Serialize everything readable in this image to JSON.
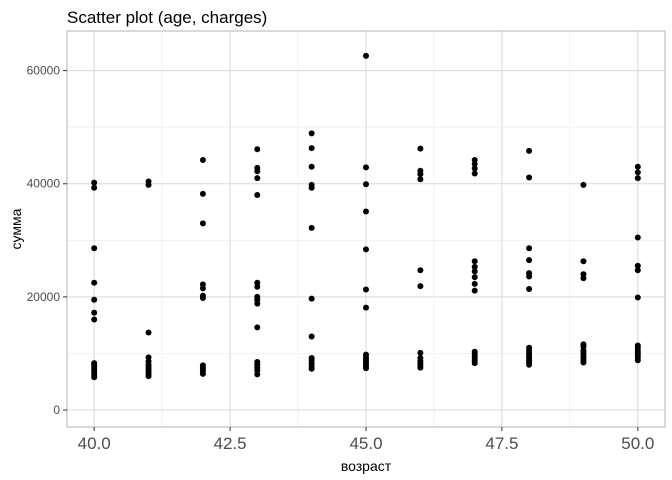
{
  "chart_data": {
    "type": "scatter",
    "title": "Scatter plot (age, charges)",
    "xlabel": "возраст",
    "ylabel": "сумма",
    "xlim": [
      39.5,
      50.5
    ],
    "ylim": [
      -3000,
      67000
    ],
    "x_ticks": [
      40.0,
      42.5,
      45.0,
      47.5,
      50.0
    ],
    "x_tick_labels": [
      "40.0",
      "42.5",
      "45.0",
      "47.5",
      "50.0"
    ],
    "y_ticks": [
      0,
      20000,
      40000,
      60000
    ],
    "y_tick_labels": [
      "0",
      "20000",
      "40000",
      "60000"
    ],
    "grid": true,
    "legend": "none",
    "point_color": "#000000",
    "points": [
      [
        40,
        5800
      ],
      [
        40,
        6200
      ],
      [
        40,
        6600
      ],
      [
        40,
        7000
      ],
      [
        40,
        7300
      ],
      [
        40,
        7600
      ],
      [
        40,
        8000
      ],
      [
        40,
        8300
      ],
      [
        40,
        16000
      ],
      [
        40,
        17200
      ],
      [
        40,
        19500
      ],
      [
        40,
        22500
      ],
      [
        40,
        28600
      ],
      [
        40,
        39300
      ],
      [
        40,
        40200
      ],
      [
        41,
        6000
      ],
      [
        41,
        6400
      ],
      [
        41,
        6800
      ],
      [
        41,
        7200
      ],
      [
        41,
        7600
      ],
      [
        41,
        8000
      ],
      [
        41,
        8600
      ],
      [
        41,
        9300
      ],
      [
        41,
        13700
      ],
      [
        41,
        39800
      ],
      [
        41,
        40400
      ],
      [
        42,
        6400
      ],
      [
        42,
        6800
      ],
      [
        42,
        7200
      ],
      [
        42,
        7500
      ],
      [
        42,
        7900
      ],
      [
        42,
        19800
      ],
      [
        42,
        20200
      ],
      [
        42,
        21500
      ],
      [
        42,
        22200
      ],
      [
        42,
        33000
      ],
      [
        42,
        38200
      ],
      [
        42,
        44200
      ],
      [
        43,
        6300
      ],
      [
        43,
        7000
      ],
      [
        43,
        7500
      ],
      [
        43,
        8000
      ],
      [
        43,
        8500
      ],
      [
        43,
        14600
      ],
      [
        43,
        18800
      ],
      [
        43,
        19500
      ],
      [
        43,
        20000
      ],
      [
        43,
        21800
      ],
      [
        43,
        22500
      ],
      [
        43,
        38000
      ],
      [
        43,
        41000
      ],
      [
        43,
        42200
      ],
      [
        43,
        42800
      ],
      [
        43,
        46100
      ],
      [
        44,
        7300
      ],
      [
        44,
        7700
      ],
      [
        44,
        8200
      ],
      [
        44,
        8800
      ],
      [
        44,
        9200
      ],
      [
        44,
        13000
      ],
      [
        44,
        19700
      ],
      [
        44,
        32200
      ],
      [
        44,
        39300
      ],
      [
        44,
        39800
      ],
      [
        44,
        43000
      ],
      [
        44,
        46300
      ],
      [
        44,
        48900
      ],
      [
        45,
        7400
      ],
      [
        45,
        7800
      ],
      [
        45,
        8100
      ],
      [
        45,
        8500
      ],
      [
        45,
        8900
      ],
      [
        45,
        9300
      ],
      [
        45,
        9800
      ],
      [
        45,
        18100
      ],
      [
        45,
        21300
      ],
      [
        45,
        28400
      ],
      [
        45,
        35100
      ],
      [
        45,
        39900
      ],
      [
        45,
        42900
      ],
      [
        45,
        62600
      ],
      [
        46,
        7500
      ],
      [
        46,
        7900
      ],
      [
        46,
        8300
      ],
      [
        46,
        8700
      ],
      [
        46,
        9200
      ],
      [
        46,
        10100
      ],
      [
        46,
        21900
      ],
      [
        46,
        24700
      ],
      [
        46,
        40800
      ],
      [
        46,
        41700
      ],
      [
        46,
        42300
      ],
      [
        46,
        46200
      ],
      [
        47,
        8300
      ],
      [
        47,
        8700
      ],
      [
        47,
        9100
      ],
      [
        47,
        9500
      ],
      [
        47,
        9900
      ],
      [
        47,
        10300
      ],
      [
        47,
        21100
      ],
      [
        47,
        22300
      ],
      [
        47,
        23500
      ],
      [
        47,
        24500
      ],
      [
        47,
        25300
      ],
      [
        47,
        26300
      ],
      [
        47,
        41800
      ],
      [
        47,
        42700
      ],
      [
        47,
        43500
      ],
      [
        47,
        44200
      ],
      [
        48,
        8000
      ],
      [
        48,
        8400
      ],
      [
        48,
        8800
      ],
      [
        48,
        9200
      ],
      [
        48,
        9600
      ],
      [
        48,
        10000
      ],
      [
        48,
        10500
      ],
      [
        48,
        11000
      ],
      [
        48,
        21400
      ],
      [
        48,
        23600
      ],
      [
        48,
        24200
      ],
      [
        48,
        26500
      ],
      [
        48,
        28600
      ],
      [
        48,
        41100
      ],
      [
        48,
        45800
      ],
      [
        49,
        8400
      ],
      [
        49,
        8800
      ],
      [
        49,
        9200
      ],
      [
        49,
        9600
      ],
      [
        49,
        10000
      ],
      [
        49,
        10500
      ],
      [
        49,
        11200
      ],
      [
        49,
        11600
      ],
      [
        49,
        23300
      ],
      [
        49,
        24000
      ],
      [
        49,
        26300
      ],
      [
        49,
        39800
      ],
      [
        50,
        8800
      ],
      [
        50,
        9300
      ],
      [
        50,
        9700
      ],
      [
        50,
        10100
      ],
      [
        50,
        10500
      ],
      [
        50,
        11000
      ],
      [
        50,
        11400
      ],
      [
        50,
        19900
      ],
      [
        50,
        24700
      ],
      [
        50,
        25500
      ],
      [
        50,
        30500
      ],
      [
        50,
        41000
      ],
      [
        50,
        42000
      ],
      [
        50,
        43000
      ]
    ]
  }
}
